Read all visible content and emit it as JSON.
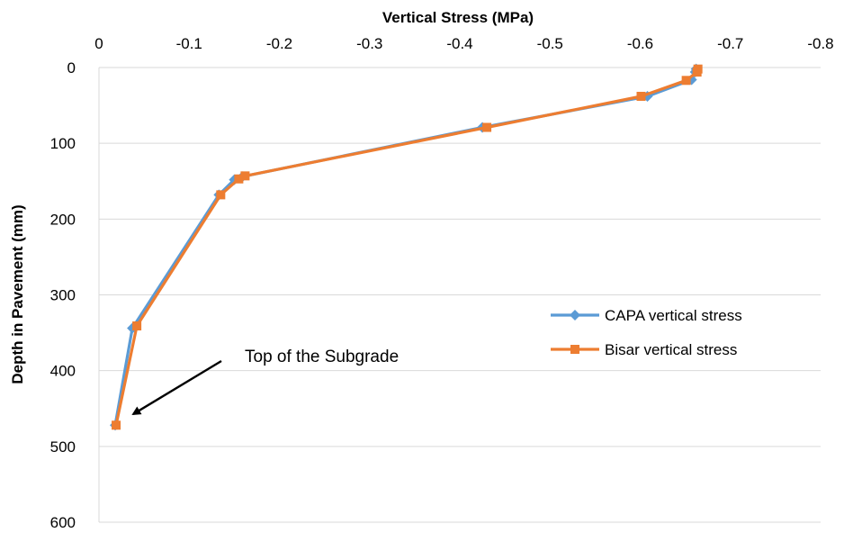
{
  "chart_data": {
    "type": "line",
    "xlabel": "Vertical Stress (MPa)",
    "ylabel": "Depth in Pavement (mm)",
    "xlim": [
      0,
      -0.8
    ],
    "ylim": [
      0,
      600
    ],
    "x_ticks": [
      0,
      -0.1,
      -0.2,
      -0.3,
      -0.4,
      -0.5,
      -0.6,
      -0.7,
      -0.8
    ],
    "y_ticks": [
      0,
      100,
      200,
      300,
      400,
      500,
      600
    ],
    "x_tick_labels": [
      "0",
      "-0.1",
      "-0.2",
      "-0.3",
      "-0.4",
      "-0.5",
      "-0.6",
      "-0.7",
      "-0.8"
    ],
    "y_tick_labels": [
      "0",
      "100",
      "200",
      "300",
      "400",
      "500",
      "600"
    ],
    "grid": "horizontal",
    "x_axis_position": "top",
    "y_axis_inverted": true,
    "legend_position": "right",
    "series": [
      {
        "name": "CAPA vertical stress",
        "color": "#5B9BD5",
        "marker": "diamond",
        "points": [
          {
            "stress": -0.662,
            "depth": 2
          },
          {
            "stress": -0.661,
            "depth": 6
          },
          {
            "stress": -0.657,
            "depth": 16
          },
          {
            "stress": -0.608,
            "depth": 38
          },
          {
            "stress": -0.425,
            "depth": 79
          },
          {
            "stress": -0.159,
            "depth": 144
          },
          {
            "stress": -0.15,
            "depth": 148
          },
          {
            "stress": -0.133,
            "depth": 168
          },
          {
            "stress": -0.037,
            "depth": 344
          },
          {
            "stress": -0.018,
            "depth": 472
          }
        ]
      },
      {
        "name": "Bisar vertical stress",
        "color": "#ED7D31",
        "marker": "square",
        "points": [
          {
            "stress": -0.664,
            "depth": 2
          },
          {
            "stress": -0.663,
            "depth": 6
          },
          {
            "stress": -0.651,
            "depth": 17
          },
          {
            "stress": -0.601,
            "depth": 38
          },
          {
            "stress": -0.43,
            "depth": 79
          },
          {
            "stress": -0.162,
            "depth": 143
          },
          {
            "stress": -0.155,
            "depth": 147
          },
          {
            "stress": -0.135,
            "depth": 168
          },
          {
            "stress": -0.042,
            "depth": 341
          },
          {
            "stress": -0.019,
            "depth": 472
          }
        ]
      }
    ],
    "annotations": [
      {
        "text": "Top of the Subgrade",
        "arrow_to": {
          "stress": -0.03,
          "depth": 455
        }
      }
    ]
  }
}
